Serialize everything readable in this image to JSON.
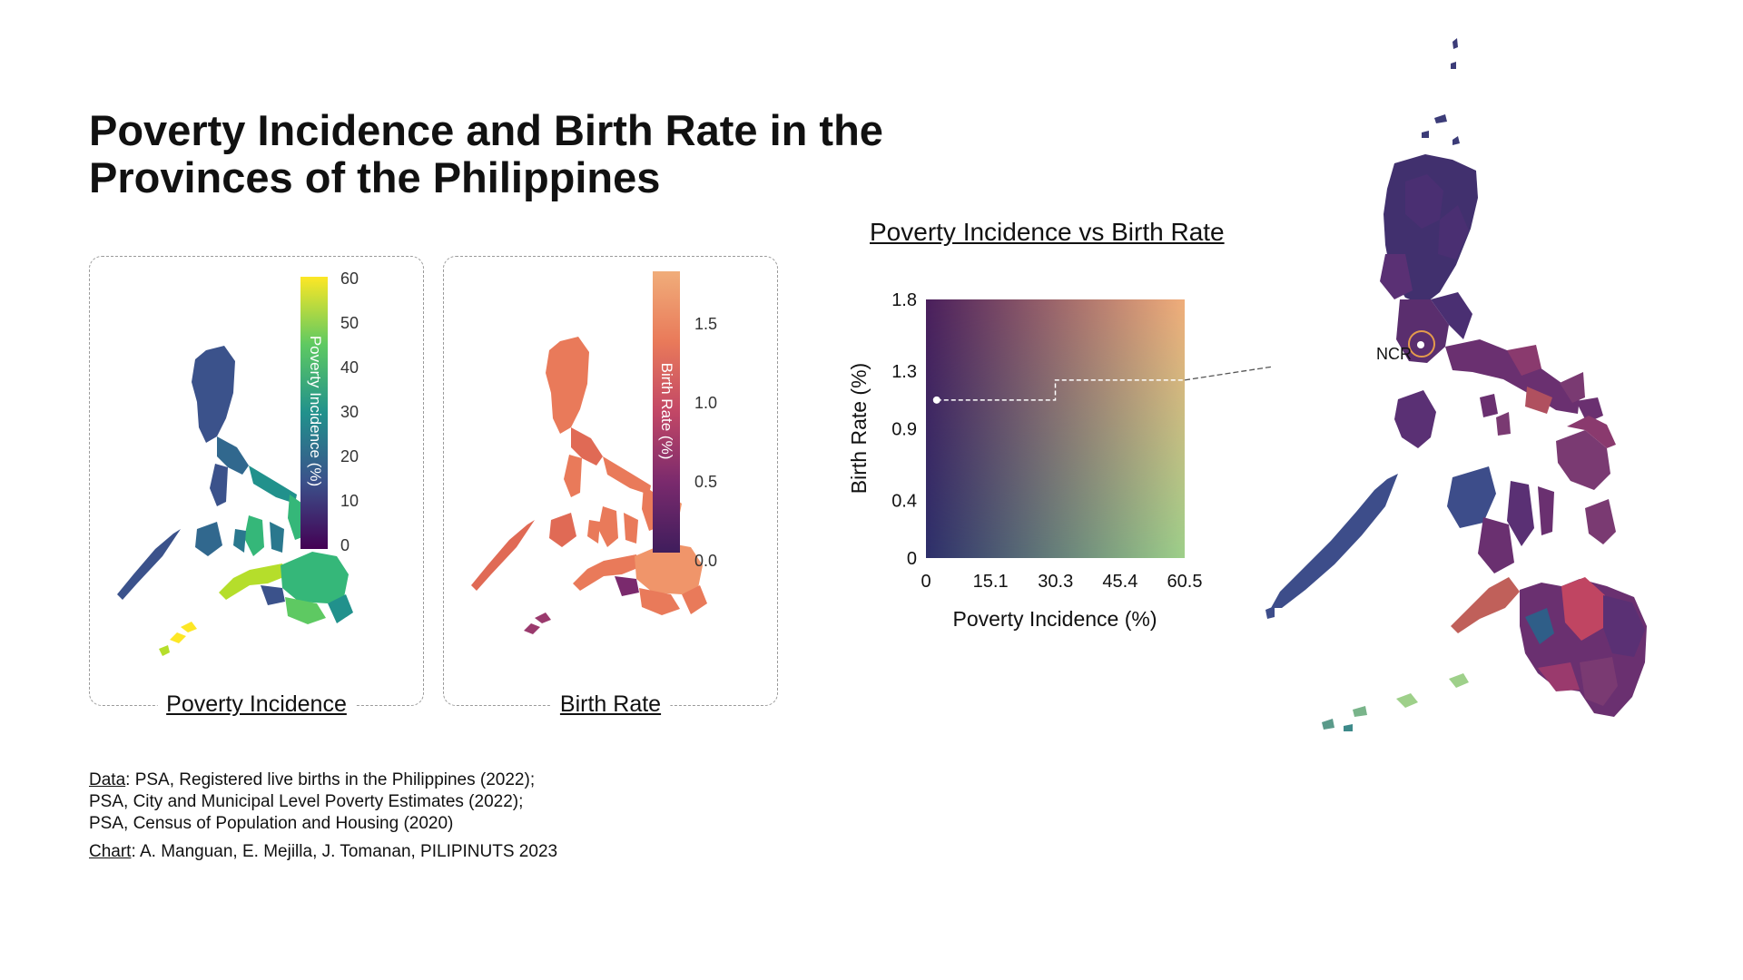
{
  "title": {
    "line1": "Poverty Incidence and Birth Rate in the",
    "line2": "Provinces of the Philippines"
  },
  "panels": {
    "poverty": {
      "caption": "Poverty Incidence",
      "legend_title": "Poverty Incidence (%)",
      "ticks": [
        "60",
        "50",
        "40",
        "30",
        "20",
        "10",
        "0"
      ],
      "colors": [
        "#fde725",
        "#5ec962",
        "#21918c",
        "#3b528b",
        "#440154"
      ]
    },
    "birth": {
      "caption": "Birth Rate",
      "legend_title": "Birth Rate (%)",
      "ticks": [
        "1.5",
        "1.0",
        "0.5",
        "0.0"
      ],
      "colors": [
        "#f0ad7a",
        "#e97a5a",
        "#c24766",
        "#7a2a6d",
        "#3f1d5c"
      ]
    }
  },
  "scatter": {
    "title": "Poverty Incidence vs Birth Rate",
    "annotation": "NCR"
  },
  "chart_data": {
    "type": "heatmap",
    "title": "Poverty Incidence vs Birth Rate",
    "xlabel": "Poverty Incidence (%)",
    "ylabel": "Birth Rate (%)",
    "x_ticks": [
      "0",
      "15.1",
      "30.3",
      "45.4",
      "60.5"
    ],
    "y_ticks": [
      "0",
      "0.4",
      "0.9",
      "1.3",
      "1.8"
    ],
    "xlim": [
      0,
      60.5
    ],
    "ylim": [
      0,
      1.8
    ],
    "colors": {
      "low_low": "#2d2f6b",
      "high_low": "#9ed08a",
      "low_high": "#4a1f5c",
      "high_high": "#f0ad7a"
    },
    "highlight": {
      "label": "NCR",
      "x": 2.5,
      "y": 1.1
    }
  },
  "credits": {
    "data_label": "Data",
    "data_line1": ": PSA, Registered live births in the Philippines (2022);",
    "data_line2": "PSA, City and Municipal Level Poverty Estimates (2022);",
    "data_line3": "PSA, Census of Population and Housing (2020)",
    "chart_label": "Chart",
    "chart_line": ": A. Manguan, E. Mejilla, J. Tomanan, PILIPINUTS 2023"
  }
}
